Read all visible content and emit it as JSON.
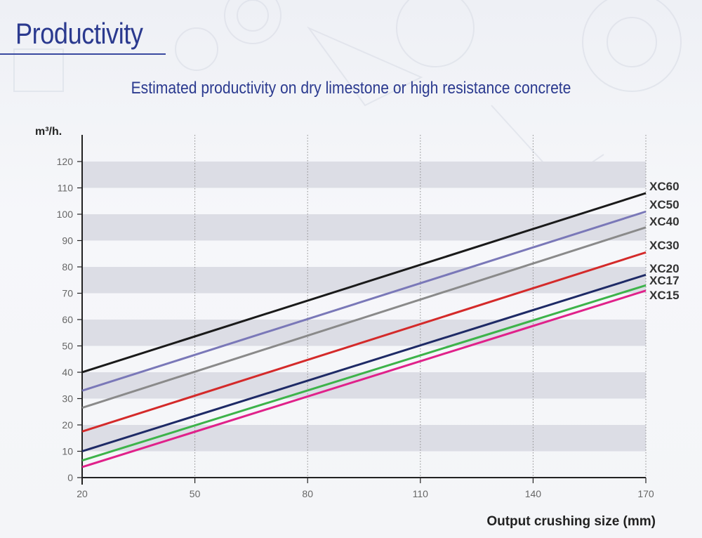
{
  "page": {
    "title": "Productivity",
    "subtitle": "Estimated productivity on dry limestone or high resistance concrete"
  },
  "chart_data": {
    "type": "line",
    "title": "Estimated productivity on dry limestone or high resistance concrete",
    "ylabel": "m³/h.",
    "xlabel": "Output crushing size (mm)",
    "xlim": [
      20,
      170
    ],
    "ylim": [
      0,
      120
    ],
    "xticks": [
      20,
      50,
      80,
      110,
      140,
      170
    ],
    "yticks": [
      0,
      10,
      20,
      30,
      40,
      50,
      60,
      70,
      80,
      90,
      100,
      110,
      120
    ],
    "grid": "vertical dotted lines, alternating horizontal bands",
    "band_color": "#dcdde5",
    "series": [
      {
        "name": "XC60",
        "color": "#1a1a1a",
        "x": [
          20,
          170
        ],
        "y": [
          40,
          108
        ]
      },
      {
        "name": "XC50",
        "color": "#7a78b8",
        "x": [
          20,
          170
        ],
        "y": [
          33,
          101
        ]
      },
      {
        "name": "XC40",
        "color": "#8a8a8a",
        "x": [
          20,
          170
        ],
        "y": [
          26.5,
          95
        ]
      },
      {
        "name": "XC30",
        "color": "#d42a2a",
        "x": [
          20,
          170
        ],
        "y": [
          17.5,
          85.5
        ]
      },
      {
        "name": "XC20",
        "color": "#1e2a66",
        "x": [
          20,
          170
        ],
        "y": [
          10,
          77
        ]
      },
      {
        "name": "XC17",
        "color": "#3db34a",
        "x": [
          20,
          170
        ],
        "y": [
          6.5,
          73
        ]
      },
      {
        "name": "XC15",
        "color": "#e0218a",
        "x": [
          20,
          170
        ],
        "y": [
          4,
          71
        ]
      }
    ]
  }
}
